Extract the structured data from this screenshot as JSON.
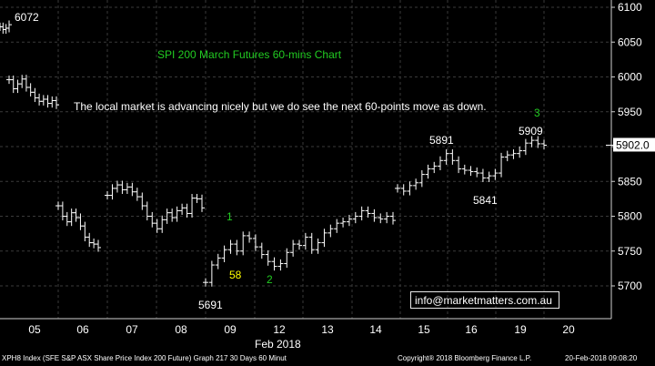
{
  "chart_data": {
    "type": "ohlc",
    "title": "SPI 200 March Futures 60-mins Chart",
    "commentary": "The local market is advancing nicely but we do see the next 60-points move as down.",
    "ylim": [
      5665,
      6110
    ],
    "y_ticks": [
      "6100",
      "6050",
      "6000",
      "5950",
      "5900",
      "5850",
      "5800",
      "5750",
      "5700"
    ],
    "x_ticks": [
      "05",
      "06",
      "07",
      "08",
      "09",
      "12",
      "13",
      "14",
      "15",
      "16",
      "19",
      "20"
    ],
    "x_month_label": "Feb 2018",
    "last_price_label": "5902.0",
    "last_price": 5902,
    "series": [
      {
        "values": [
          6072,
          6068,
          6070,
          6075
        ]
      },
      {
        "values": [
          5996,
          5983,
          5990,
          5997,
          5985,
          5978,
          5970,
          5965,
          5968,
          5962,
          5966,
          5960
        ]
      },
      {
        "values": [
          5815,
          5800,
          5792,
          5805,
          5798,
          5786,
          5770,
          5762,
          5760,
          5755
        ]
      },
      {
        "values": [
          5830,
          5840,
          5845,
          5838,
          5842,
          5835,
          5828,
          5815,
          5800,
          5790,
          5782,
          5795,
          5805,
          5798,
          5808,
          5812,
          5804,
          5826,
          5825,
          5812
        ]
      },
      {
        "values": [
          5705,
          5730,
          5740,
          5752,
          5760,
          5750,
          5772,
          5768,
          5756,
          5745,
          5735,
          5728,
          5732,
          5748,
          5760,
          5758,
          5770,
          5752,
          5762,
          5776,
          5782,
          5790,
          5792,
          5796,
          5800,
          5808,
          5804,
          5798,
          5796,
          5800,
          5794
        ]
      },
      {
        "values": [
          5840,
          5836,
          5844,
          5848,
          5860,
          5868,
          5872,
          5880,
          5890,
          5880,
          5868,
          5866,
          5864,
          5862,
          5855,
          5858,
          5862,
          5885,
          5888,
          5890,
          5894,
          5905,
          5909,
          5904,
          5902
        ]
      }
    ],
    "annotations": [
      {
        "label": "6072",
        "price": 6072,
        "color": "#ffffff"
      },
      {
        "label": "5891",
        "price": 5891,
        "color": "#ffffff"
      },
      {
        "label": "5909",
        "price": 5909,
        "color": "#ffffff"
      },
      {
        "label": "5841",
        "price": 5841,
        "color": "#ffffff"
      },
      {
        "label": "5691",
        "price": 5691,
        "color": "#ffffff"
      },
      {
        "label": "1",
        "price": 5780,
        "color": "#22cc22"
      },
      {
        "label": "2",
        "price": 5730,
        "color": "#22cc22"
      },
      {
        "label": "3",
        "price": 5915,
        "color": "#22cc22"
      },
      {
        "label": "58",
        "price": 5735,
        "color": "#ffff00"
      }
    ],
    "grid": true
  },
  "colors": {
    "background": "#000000",
    "grid": "#3a3a3a",
    "bars": "#ffffff",
    "title": "#22cc22",
    "wave_labels": "#22cc22",
    "point_label": "#ffff00"
  },
  "email": "info@marketmatters.com.au",
  "footer": {
    "left": "XPH8 Index (SFE S&P ASX Share Price Index 200 Future) Graph 217 30 Days 60 Minut",
    "center": "Copyright® 2018 Bloomberg Finance L.P.",
    "right": "20-Feb-2018 09:08:20"
  }
}
